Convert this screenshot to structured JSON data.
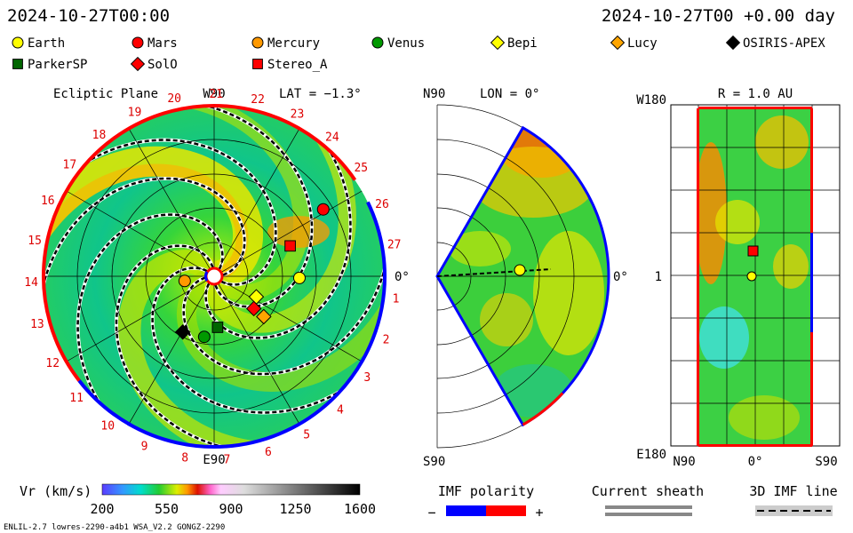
{
  "header": {
    "left": "2024-10-27T00:00",
    "right": "2024-10-27T00 +0.00 day"
  },
  "legend_markers": [
    {
      "label": "Earth",
      "color": "#ffff00",
      "shape": "circle"
    },
    {
      "label": "Mars",
      "color": "#ff0000",
      "shape": "circle"
    },
    {
      "label": "Mercury",
      "color": "#ff9900",
      "shape": "circle"
    },
    {
      "label": "Venus",
      "color": "#009900",
      "shape": "circle"
    },
    {
      "label": "Bepi",
      "color": "#ffff00",
      "shape": "diamond"
    },
    {
      "label": "Lucy",
      "color": "#ffa500",
      "shape": "diamond"
    },
    {
      "label": "OSIRIS-APEX",
      "color": "#000000",
      "shape": "diamond"
    },
    {
      "label": "ParkerSP",
      "color": "#006600",
      "shape": "square"
    },
    {
      "label": "SolO",
      "color": "#ff0000",
      "shape": "diamond"
    },
    {
      "label": "Stereo_A",
      "color": "#ff0000",
      "shape": "square"
    }
  ],
  "panels": {
    "ecliptic": {
      "title": "Ecliptic Plane",
      "lat_label": "LAT = −1.3°",
      "top_label": "W90",
      "bottom_label": "E90",
      "right_label": "0°",
      "carrington_ticks": [
        "1",
        "2",
        "3",
        "4",
        "5",
        "6",
        "7",
        "8",
        "9",
        "10",
        "11",
        "12",
        "13",
        "14",
        "15",
        "16",
        "17",
        "18",
        "19",
        "20",
        "21",
        "22",
        "23",
        "24",
        "25",
        "26",
        "27"
      ]
    },
    "meridional": {
      "lon_label": "LON = 0°",
      "top_label": "N90",
      "bottom_label": "S90",
      "right_label": "0°"
    },
    "radial": {
      "r_label": "R = 1.0 AU",
      "y_top": "W180",
      "y_mid": "1",
      "y_bottom": "E180",
      "x_left": "N90",
      "x_mid": "0°",
      "x_right": "S90"
    }
  },
  "chart_data": [
    {
      "type": "heatmap",
      "title": "Ecliptic Plane",
      "subtitle": "LAT = −1.3°",
      "colorbar": {
        "label": "Vr (km/s)",
        "ticks": [
          200,
          550,
          900,
          1250,
          1600
        ],
        "range": [
          200,
          1600
        ]
      },
      "bodies_radius_au": {
        "Earth": 1.0,
        "Mars": 1.5,
        "Mercury": 0.35,
        "Venus": 0.72,
        "Bepi": 0.55,
        "Lucy": 0.75,
        "OSIRIS-APEX": 0.75,
        "ParkerSP": 0.6,
        "SolO": 0.6,
        "Stereo_A": 0.96
      }
    }
  ],
  "footer": {
    "colorbar_label": "Vr (km/s)",
    "colorbar_ticks": [
      "200",
      "550",
      "900",
      "1250",
      "1600"
    ],
    "imf_title": "IMF polarity",
    "imf_minus": "−",
    "imf_plus": "+",
    "sheath_title": "Current sheath",
    "imf3d_title": "3D IMF line",
    "run_info": "ENLIL-2.7 lowres-2290-a4b1 WSA_V2.2 GONGZ-2290"
  },
  "colors": {
    "positive": "#ff0000",
    "negative": "#0000ff",
    "grid": "#000000"
  }
}
